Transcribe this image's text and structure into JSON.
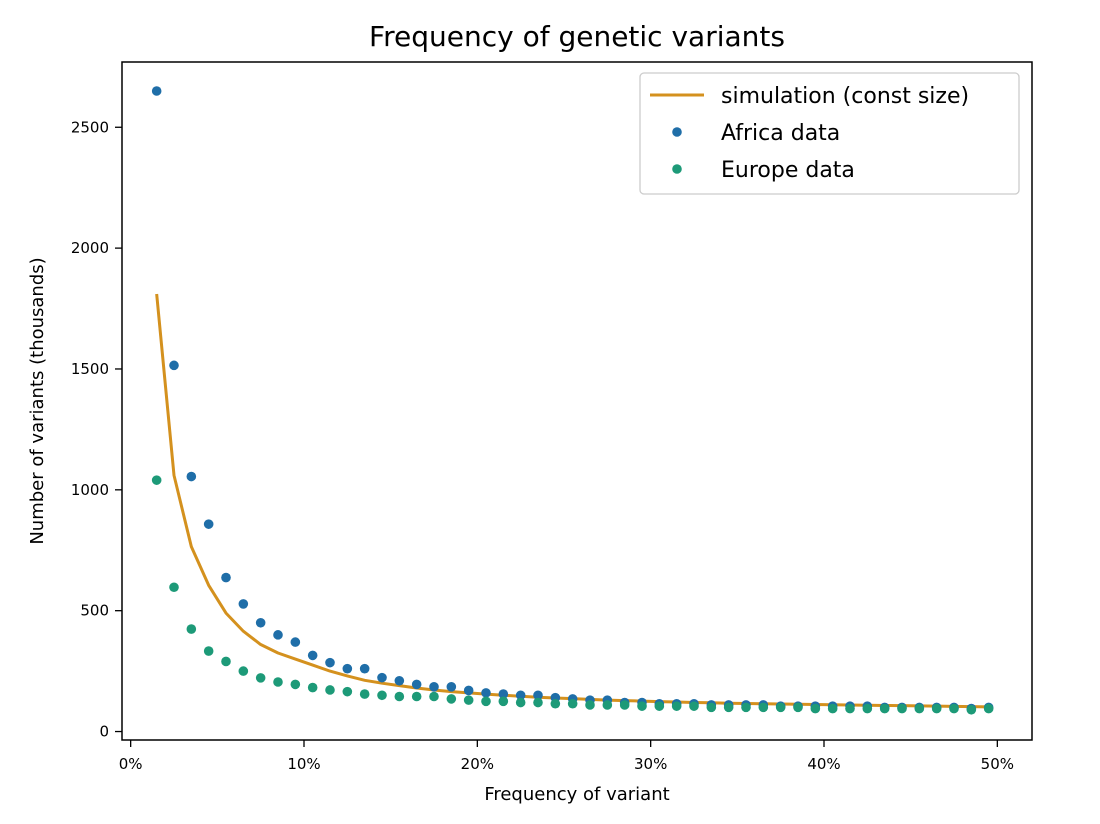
{
  "chart_data": {
    "type": "scatter",
    "title": "Frequency of genetic variants",
    "xlabel": "Frequency of variant",
    "ylabel": "Number of variants (thousands)",
    "xlim": [
      -0.5,
      52
    ],
    "ylim": [
      -35,
      2770
    ],
    "x_ticks": [
      0,
      10,
      20,
      30,
      40,
      50
    ],
    "x_tick_labels": [
      "0%",
      "10%",
      "20%",
      "30%",
      "40%",
      "50%"
    ],
    "y_ticks": [
      0,
      500,
      1000,
      1500,
      2000,
      2500
    ],
    "y_tick_labels": [
      "0",
      "500",
      "1000",
      "1500",
      "2000",
      "2500"
    ],
    "grid": false,
    "legend_position": "top-right",
    "x": [
      1.5,
      2.5,
      3.5,
      4.5,
      5.5,
      6.5,
      7.5,
      8.5,
      9.5,
      10.5,
      11.5,
      12.5,
      13.5,
      14.5,
      15.5,
      16.5,
      17.5,
      18.5,
      19.5,
      20.5,
      21.5,
      22.5,
      23.5,
      24.5,
      25.5,
      26.5,
      27.5,
      28.5,
      29.5,
      30.5,
      31.5,
      32.5,
      33.5,
      34.5,
      35.5,
      36.5,
      37.5,
      38.5,
      39.5,
      40.5,
      41.5,
      42.5,
      43.5,
      44.5,
      45.5,
      46.5,
      47.5,
      48.5,
      49.5
    ],
    "series": [
      {
        "name": "simulation (const size)",
        "kind": "line",
        "color": "#D4911E",
        "values": [
          1810,
          1060,
          765,
          605,
          490,
          415,
          360,
          325,
          300,
          275,
          250,
          230,
          212,
          200,
          190,
          180,
          172,
          165,
          160,
          155,
          150,
          146,
          142,
          139,
          136,
          133,
          130,
          128,
          126,
          124,
          122,
          120,
          119,
          117,
          116,
          115,
          114,
          113,
          112,
          111,
          110,
          109,
          108,
          107,
          106,
          105,
          104,
          103,
          102
        ]
      },
      {
        "name": "Africa data",
        "kind": "scatter",
        "color": "#1F6EA8",
        "values": [
          2650,
          1515,
          1055,
          858,
          637,
          528,
          450,
          400,
          370,
          315,
          285,
          260,
          260,
          223,
          210,
          195,
          185,
          185,
          170,
          160,
          155,
          150,
          150,
          140,
          135,
          130,
          130,
          120,
          120,
          115,
          115,
          115,
          110,
          110,
          110,
          110,
          105,
          105,
          105,
          105,
          105,
          105,
          100,
          100,
          100,
          100,
          100,
          95,
          100
        ]
      },
      {
        "name": "Europe data",
        "kind": "scatter",
        "color": "#1D9A78",
        "values": [
          1040,
          597,
          424,
          333,
          290,
          250,
          222,
          205,
          195,
          182,
          172,
          165,
          155,
          150,
          145,
          145,
          145,
          135,
          130,
          125,
          125,
          120,
          120,
          115,
          115,
          110,
          110,
          110,
          105,
          105,
          105,
          105,
          100,
          100,
          100,
          100,
          100,
          100,
          95,
          95,
          95,
          95,
          95,
          95,
          95,
          95,
          95,
          90,
          95
        ]
      }
    ]
  }
}
